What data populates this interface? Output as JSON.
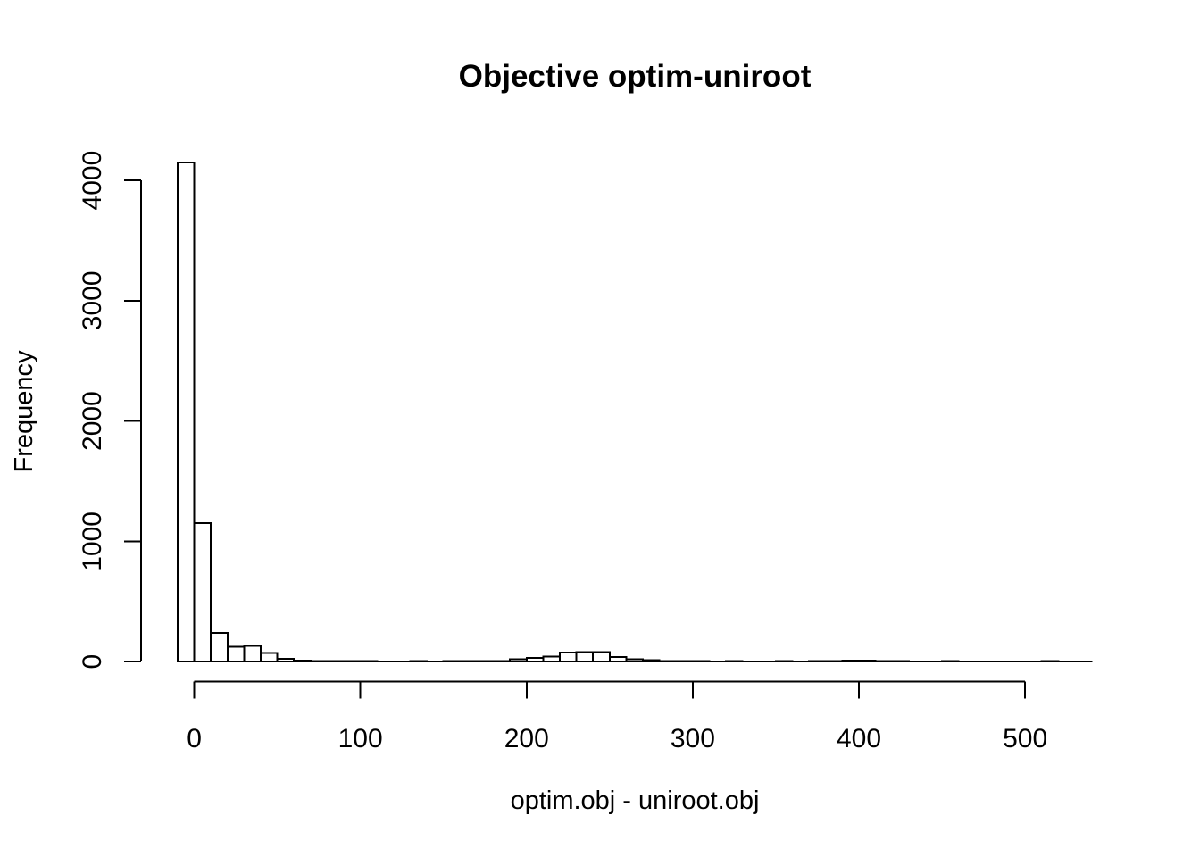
{
  "chart_data": {
    "type": "bar",
    "subtype": "histogram",
    "title": "Objective optim-uniroot",
    "xlabel": "optim.obj - uniroot.obj",
    "ylabel": "Frequency",
    "bin_start": -10,
    "bin_width": 10,
    "counts": [
      4150,
      1150,
      240,
      122,
      130,
      70,
      22,
      9,
      6,
      4,
      3,
      3,
      2,
      2,
      3,
      2,
      3,
      3,
      4,
      6,
      20,
      30,
      42,
      75,
      80,
      80,
      38,
      20,
      11,
      6,
      4,
      3,
      2,
      3,
      2,
      2,
      3,
      2,
      3,
      4,
      8,
      9,
      5,
      3,
      2,
      2,
      3,
      2,
      2,
      2,
      2,
      2,
      3,
      2,
      2
    ],
    "x_ticks": [
      0,
      100,
      200,
      300,
      400,
      500
    ],
    "y_ticks": [
      0,
      1000,
      2000,
      3000,
      4000
    ],
    "xlim": [
      -32,
      562
    ],
    "ylim": [
      -166,
      4316
    ],
    "grid": false,
    "legend": null,
    "bar_fill": "#ffffff",
    "stroke_color": "#000000",
    "background": "#ffffff"
  }
}
